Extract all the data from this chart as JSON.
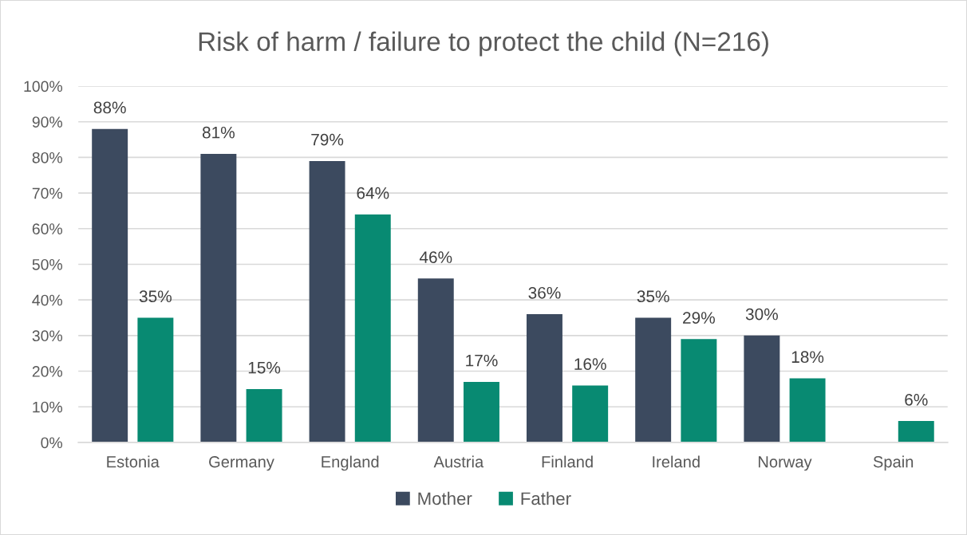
{
  "chart_data": {
    "type": "bar",
    "title": "Risk of harm / failure to protect the child (N=216)",
    "categories": [
      "Estonia",
      "Germany",
      "England",
      "Austria",
      "Finland",
      "Ireland",
      "Norway",
      "Spain"
    ],
    "series": [
      {
        "name": "Mother",
        "color": "#3c4a5f",
        "values": [
          88,
          81,
          79,
          46,
          36,
          35,
          30,
          null
        ],
        "value_labels": [
          "88%",
          "81%",
          "79%",
          "46%",
          "36%",
          "35%",
          "30%",
          null
        ]
      },
      {
        "name": "Father",
        "color": "#088a72",
        "values": [
          35,
          15,
          64,
          17,
          16,
          29,
          18,
          6
        ],
        "value_labels": [
          "35%",
          "15%",
          "64%",
          "17%",
          "16%",
          "29%",
          "18%",
          "6%"
        ]
      }
    ],
    "ylim": [
      0,
      100
    ],
    "yticks": [
      {
        "value": 0,
        "label": "0%"
      },
      {
        "value": 10,
        "label": "10%"
      },
      {
        "value": 20,
        "label": "20%"
      },
      {
        "value": 30,
        "label": "30%"
      },
      {
        "value": 40,
        "label": "40%"
      },
      {
        "value": 50,
        "label": "50%"
      },
      {
        "value": 60,
        "label": "60%"
      },
      {
        "value": 70,
        "label": "70%"
      },
      {
        "value": 80,
        "label": "80%"
      },
      {
        "value": 90,
        "label": "90%"
      },
      {
        "value": 100,
        "label": "100%"
      }
    ],
    "grid": "y",
    "legend": "bottom"
  }
}
